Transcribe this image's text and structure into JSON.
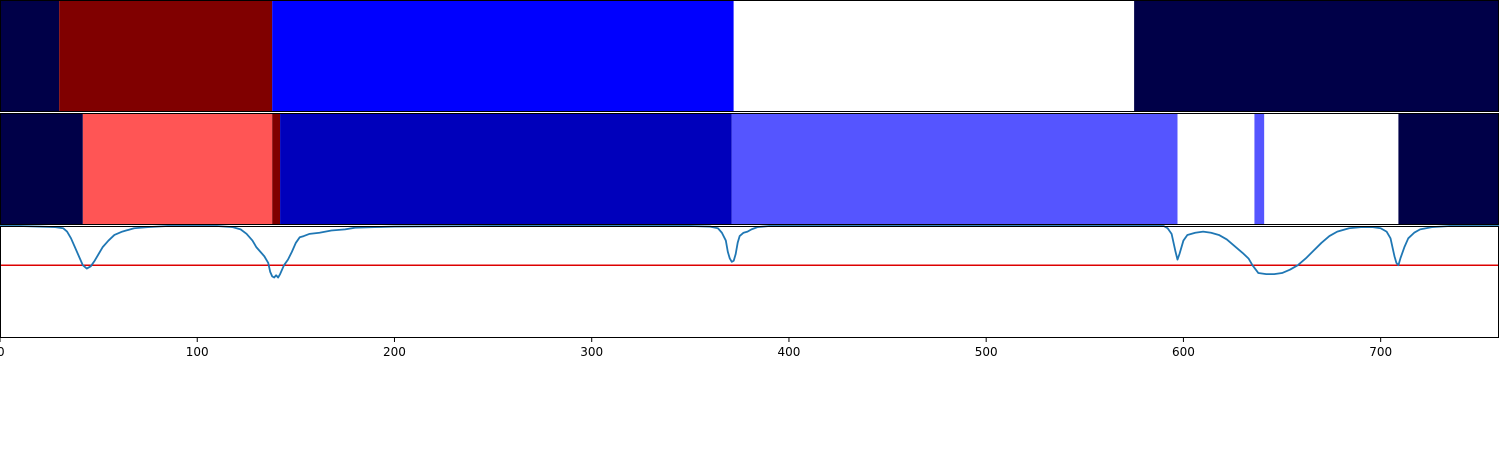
{
  "chart_data": {
    "type": "segmentation",
    "x_axis": {
      "range": [
        0,
        760
      ],
      "ticks": [
        0,
        100,
        200,
        300,
        400,
        500,
        600,
        700
      ],
      "tick_labels": [
        "0",
        "100",
        "200",
        "300",
        "400",
        "500",
        "600",
        "700"
      ]
    },
    "tracks": [
      {
        "kind": "segments",
        "segments": [
          {
            "start": 0,
            "end": 30,
            "color": "#000048"
          },
          {
            "start": 30,
            "end": 138,
            "color": "#800000"
          },
          {
            "start": 138,
            "end": 372,
            "color": "#0000ff"
          },
          {
            "start": 372,
            "end": 575,
            "color": "#ffffff"
          },
          {
            "start": 575,
            "end": 760,
            "color": "#000048"
          }
        ]
      },
      {
        "kind": "segments",
        "segments": [
          {
            "start": 0,
            "end": 42,
            "color": "#000048"
          },
          {
            "start": 42,
            "end": 138,
            "color": "#ff5555"
          },
          {
            "start": 138,
            "end": 142,
            "color": "#800000"
          },
          {
            "start": 142,
            "end": 371,
            "color": "#0000bb"
          },
          {
            "start": 371,
            "end": 597,
            "color": "#5555ff"
          },
          {
            "start": 597,
            "end": 636,
            "color": "#ffffff"
          },
          {
            "start": 636,
            "end": 641,
            "color": "#5555ff"
          },
          {
            "start": 641,
            "end": 709,
            "color": "#ffffff"
          },
          {
            "start": 709,
            "end": 760,
            "color": "#000048"
          }
        ]
      },
      {
        "kind": "line",
        "y_range": [
          -0.65,
          0.35
        ],
        "threshold": 0.0,
        "threshold_color": "#dd0000",
        "line_color": "#1f77b4",
        "points": [
          [
            0,
            0.35
          ],
          [
            10,
            0.35
          ],
          [
            20,
            0.345
          ],
          [
            28,
            0.34
          ],
          [
            32,
            0.33
          ],
          [
            34,
            0.3
          ],
          [
            36,
            0.24
          ],
          [
            38,
            0.16
          ],
          [
            40,
            0.08
          ],
          [
            42,
            0.0
          ],
          [
            44,
            -0.03
          ],
          [
            46,
            -0.01
          ],
          [
            48,
            0.04
          ],
          [
            50,
            0.1
          ],
          [
            52,
            0.16
          ],
          [
            55,
            0.22
          ],
          [
            58,
            0.27
          ],
          [
            62,
            0.3
          ],
          [
            68,
            0.33
          ],
          [
            75,
            0.34
          ],
          [
            85,
            0.35
          ],
          [
            110,
            0.35
          ],
          [
            118,
            0.34
          ],
          [
            122,
            0.32
          ],
          [
            125,
            0.28
          ],
          [
            128,
            0.22
          ],
          [
            130,
            0.16
          ],
          [
            132,
            0.12
          ],
          [
            134,
            0.08
          ],
          [
            136,
            0.02
          ],
          [
            137,
            -0.06
          ],
          [
            138,
            -0.1
          ],
          [
            139,
            -0.11
          ],
          [
            140,
            -0.09
          ],
          [
            141,
            -0.11
          ],
          [
            142,
            -0.08
          ],
          [
            144,
            0.0
          ],
          [
            146,
            0.05
          ],
          [
            148,
            0.12
          ],
          [
            150,
            0.2
          ],
          [
            152,
            0.25
          ],
          [
            154,
            0.26
          ],
          [
            157,
            0.28
          ],
          [
            162,
            0.29
          ],
          [
            168,
            0.31
          ],
          [
            175,
            0.32
          ],
          [
            180,
            0.335
          ],
          [
            190,
            0.34
          ],
          [
            200,
            0.345
          ],
          [
            250,
            0.35
          ],
          [
            350,
            0.35
          ],
          [
            360,
            0.345
          ],
          [
            364,
            0.33
          ],
          [
            366,
            0.29
          ],
          [
            368,
            0.22
          ],
          [
            369,
            0.12
          ],
          [
            370,
            0.06
          ],
          [
            371,
            0.03
          ],
          [
            372,
            0.04
          ],
          [
            373,
            0.1
          ],
          [
            374,
            0.2
          ],
          [
            375,
            0.26
          ],
          [
            377,
            0.29
          ],
          [
            379,
            0.3
          ],
          [
            381,
            0.32
          ],
          [
            384,
            0.34
          ],
          [
            390,
            0.35
          ],
          [
            590,
            0.35
          ],
          [
            592,
            0.33
          ],
          [
            594,
            0.28
          ],
          [
            595,
            0.2
          ],
          [
            596,
            0.12
          ],
          [
            597,
            0.05
          ],
          [
            598,
            0.1
          ],
          [
            600,
            0.22
          ],
          [
            602,
            0.27
          ],
          [
            606,
            0.29
          ],
          [
            610,
            0.3
          ],
          [
            614,
            0.29
          ],
          [
            618,
            0.27
          ],
          [
            622,
            0.23
          ],
          [
            626,
            0.17
          ],
          [
            630,
            0.11
          ],
          [
            633,
            0.06
          ],
          [
            635,
            0.0
          ],
          [
            638,
            -0.07
          ],
          [
            642,
            -0.08
          ],
          [
            646,
            -0.08
          ],
          [
            650,
            -0.07
          ],
          [
            654,
            -0.04
          ],
          [
            658,
            0.0
          ],
          [
            662,
            0.06
          ],
          [
            666,
            0.13
          ],
          [
            670,
            0.2
          ],
          [
            674,
            0.26
          ],
          [
            678,
            0.3
          ],
          [
            684,
            0.33
          ],
          [
            690,
            0.34
          ],
          [
            696,
            0.34
          ],
          [
            700,
            0.33
          ],
          [
            703,
            0.3
          ],
          [
            705,
            0.24
          ],
          [
            706,
            0.16
          ],
          [
            707,
            0.08
          ],
          [
            708,
            0.02
          ],
          [
            709,
            0.0
          ],
          [
            710,
            0.06
          ],
          [
            712,
            0.16
          ],
          [
            714,
            0.24
          ],
          [
            717,
            0.29
          ],
          [
            720,
            0.32
          ],
          [
            726,
            0.34
          ],
          [
            735,
            0.35
          ],
          [
            760,
            0.35
          ]
        ]
      }
    ]
  }
}
